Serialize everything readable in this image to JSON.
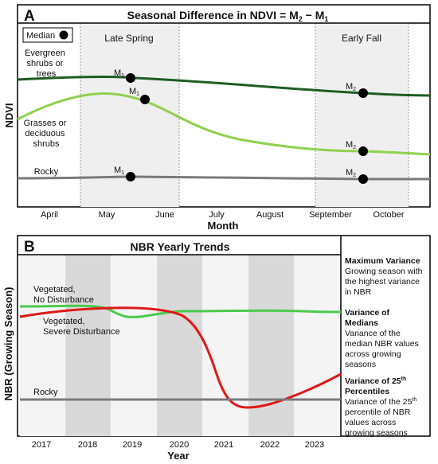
{
  "chart_data": [
    {
      "panel": "A",
      "type": "line",
      "title": "Seasonal Difference in NDVI = M",
      "title_sub1": "2",
      "title_mid": " − M",
      "title_sub2": "1",
      "xlabel": "Month",
      "ylabel": "NDVI",
      "x_ticks": [
        "April",
        "May",
        "June",
        "July",
        "August",
        "September",
        "October"
      ],
      "legend_label": "Median",
      "shaded_periods": [
        {
          "label": "Late Spring",
          "start": "May",
          "end": "June"
        },
        {
          "label": "Early Fall",
          "start": "September",
          "end": "October"
        }
      ],
      "series": [
        {
          "name": "Evergreen shrubs or trees",
          "label_lines": [
            "Evergreen",
            "shrubs or",
            "trees"
          ],
          "color": "#1e5e20",
          "medians": [
            {
              "label": "M",
              "sub": "1",
              "month": "May"
            },
            {
              "label": "M",
              "sub": "2",
              "month": "September"
            }
          ]
        },
        {
          "name": "Grasses or deciduous shrubs",
          "label_lines": [
            "Grasses or",
            "deciduous",
            "shrubs"
          ],
          "color": "#8fd14f",
          "medians": [
            {
              "label": "M",
              "sub": "1",
              "month": "May"
            },
            {
              "label": "M",
              "sub": "2",
              "month": "September"
            }
          ]
        },
        {
          "name": "Rocky",
          "label_lines": [
            "Rocky"
          ],
          "color": "#7a7a7a",
          "medians": [
            {
              "label": "M",
              "sub": "1",
              "month": "May"
            },
            {
              "label": "M",
              "sub": "2",
              "month": "September"
            }
          ]
        }
      ]
    },
    {
      "panel": "B",
      "type": "line",
      "title": "NBR Yearly Trends",
      "xlabel": "Year",
      "ylabel": "NBR (Growing Season)",
      "x_ticks": [
        "2017",
        "2018",
        "2019",
        "2020",
        "2021",
        "2022",
        "2023"
      ],
      "series": [
        {
          "name": "Vegetated, No Disturbance",
          "label_lines": [
            "Vegetated,",
            "No Disturbance"
          ],
          "color": "#4cc94c"
        },
        {
          "name": "Vegetated, Severe Disturbance",
          "label_lines": [
            "Vegetated,",
            "Severe Disturbance"
          ],
          "color": "#e01818"
        },
        {
          "name": "Rocky",
          "label_lines": [
            "Rocky"
          ],
          "color": "#7a7a7a"
        }
      ],
      "side_notes": [
        {
          "title_lines": [
            "Maximum Variance"
          ],
          "title_sup": "",
          "body_lines": [
            "Growing season with",
            "the highest variance",
            "in NBR"
          ]
        },
        {
          "title_lines": [
            "Variance of",
            "Medians"
          ],
          "title_sup": "",
          "body_lines": [
            "Variance of the",
            "median NBR values",
            "across growing",
            "seasons"
          ]
        },
        {
          "title_lines": [
            "Variance of 25",
            "Percentiles"
          ],
          "title_sup": "th",
          "body_lines": [
            "Variance of the 25",
            "percentile of NBR",
            "values across",
            "growing seasons"
          ],
          "body_sup": "th"
        }
      ]
    }
  ]
}
